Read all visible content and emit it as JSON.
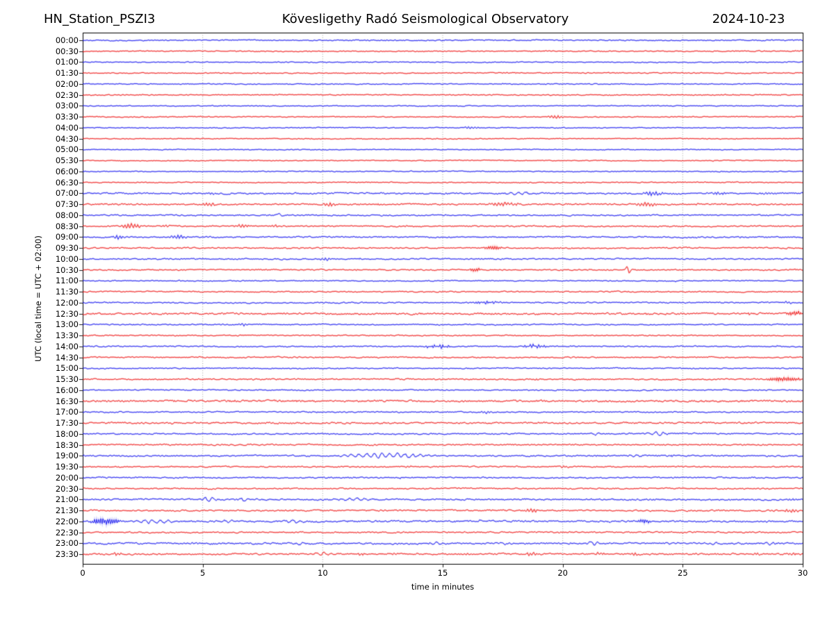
{
  "header": {
    "station": "HN_Station_PSZI3",
    "observatory": "Kövesligethy Radó Seismological Observatory",
    "date": "2024-10-23"
  },
  "chart_data": {
    "type": "line",
    "subtype": "helicorder-day-plot-seismogram",
    "title": "Kövesligethy Radó Seismological Observatory",
    "station": "HN_Station_PSZI3",
    "date": "2024-10-23",
    "xlabel": "time in minutes",
    "ylabel": "UTC (local time = UTC + 02:00)",
    "xlim": [
      0,
      30
    ],
    "x_ticks": [
      "0",
      "5",
      "10",
      "15",
      "20",
      "25",
      "30"
    ],
    "minutes_per_row": 30,
    "grid_vertical_dotted_at_minutes": [
      5,
      10,
      15,
      20,
      25
    ],
    "grid_color": "#8a8a8a",
    "trace_color_hour": "#0000ee",
    "trace_color_halfhour": "#ee0000",
    "row_labels": [
      "00:00",
      "00:30",
      "01:00",
      "01:30",
      "02:00",
      "02:30",
      "03:00",
      "03:30",
      "04:00",
      "04:30",
      "05:00",
      "05:30",
      "06:00",
      "06:30",
      "07:00",
      "07:30",
      "08:00",
      "08:30",
      "09:00",
      "09:30",
      "10:00",
      "10:30",
      "11:00",
      "11:30",
      "12:00",
      "12:30",
      "13:00",
      "13:30",
      "14:00",
      "14:30",
      "15:00",
      "15:30",
      "16:00",
      "16:30",
      "17:00",
      "17:30",
      "18:00",
      "18:30",
      "19:00",
      "19:30",
      "20:00",
      "20:30",
      "21:00",
      "21:30",
      "22:00",
      "22:30",
      "23:00",
      "23:30"
    ],
    "row_base_noise": [
      0.7,
      0.65,
      0.6,
      0.6,
      0.6,
      0.65,
      0.6,
      0.6,
      0.55,
      0.55,
      0.55,
      0.55,
      0.6,
      0.6,
      0.95,
      0.95,
      0.8,
      0.85,
      0.85,
      0.8,
      0.8,
      0.8,
      0.7,
      0.75,
      0.8,
      1.1,
      0.75,
      0.7,
      0.75,
      0.75,
      0.7,
      0.85,
      0.7,
      1.2,
      0.75,
      1.05,
      0.8,
      0.85,
      0.9,
      0.85,
      0.85,
      0.8,
      1.0,
      0.95,
      1.05,
      0.85,
      1.0,
      0.95
    ],
    "events": [
      {
        "row": "02:30",
        "start": 8.0,
        "end": 8.3,
        "amp": 1.0,
        "kind": "burst"
      },
      {
        "row": "03:30",
        "start": 19.3,
        "end": 20.1,
        "amp": 2.4,
        "kind": "burst"
      },
      {
        "row": "04:00",
        "start": 15.8,
        "end": 16.6,
        "amp": 1.6,
        "kind": "burst"
      },
      {
        "row": "07:00",
        "start": 5.1,
        "end": 5.6,
        "amp": 1.4,
        "kind": "burst"
      },
      {
        "row": "07:00",
        "start": 17.2,
        "end": 19.2,
        "amp": 1.3,
        "kind": "wave"
      },
      {
        "row": "07:00",
        "start": 23.2,
        "end": 24.3,
        "amp": 2.8,
        "kind": "burst"
      },
      {
        "row": "07:00",
        "start": 26.1,
        "end": 26.9,
        "amp": 1.7,
        "kind": "burst"
      },
      {
        "row": "07:00",
        "start": 28.2,
        "end": 28.9,
        "amp": 1.5,
        "kind": "burst"
      },
      {
        "row": "07:30",
        "start": 4.9,
        "end": 5.6,
        "amp": 2.2,
        "kind": "burst"
      },
      {
        "row": "07:30",
        "start": 9.9,
        "end": 10.7,
        "amp": 2.2,
        "kind": "burst"
      },
      {
        "row": "07:30",
        "start": 16.8,
        "end": 18.3,
        "amp": 2.6,
        "kind": "burst"
      },
      {
        "row": "07:30",
        "start": 22.9,
        "end": 24.1,
        "amp": 3.0,
        "kind": "burst"
      },
      {
        "row": "07:30",
        "start": 25.3,
        "end": 25.9,
        "amp": 1.5,
        "kind": "burst"
      },
      {
        "row": "08:00",
        "start": 8.0,
        "end": 8.5,
        "amp": 3.8,
        "kind": "spike"
      },
      {
        "row": "08:30",
        "start": 1.5,
        "end": 2.5,
        "amp": 3.6,
        "kind": "burst"
      },
      {
        "row": "08:30",
        "start": 3.3,
        "end": 3.7,
        "amp": 1.7,
        "kind": "burst"
      },
      {
        "row": "08:30",
        "start": 6.2,
        "end": 7.1,
        "amp": 2.0,
        "kind": "burst"
      },
      {
        "row": "08:30",
        "start": 7.8,
        "end": 8.2,
        "amp": 1.7,
        "kind": "burst"
      },
      {
        "row": "09:00",
        "start": 1.2,
        "end": 1.8,
        "amp": 3.0,
        "kind": "burst"
      },
      {
        "row": "09:00",
        "start": 3.5,
        "end": 4.4,
        "amp": 2.6,
        "kind": "burst"
      },
      {
        "row": "09:30",
        "start": 16.7,
        "end": 17.5,
        "amp": 3.0,
        "kind": "dense"
      },
      {
        "row": "10:00",
        "start": 9.8,
        "end": 10.4,
        "amp": 2.0,
        "kind": "burst"
      },
      {
        "row": "10:30",
        "start": 16.1,
        "end": 16.6,
        "amp": 2.8,
        "kind": "dense"
      },
      {
        "row": "10:30",
        "start": 22.55,
        "end": 22.9,
        "amp": 8.0,
        "kind": "spike"
      },
      {
        "row": "12:00",
        "start": 16.1,
        "end": 17.7,
        "amp": 2.0,
        "kind": "dots"
      },
      {
        "row": "12:00",
        "start": 29.1,
        "end": 29.7,
        "amp": 1.7,
        "kind": "burst"
      },
      {
        "row": "12:30",
        "start": 29.3,
        "end": 30.0,
        "amp": 2.6,
        "kind": "dense"
      },
      {
        "row": "13:00",
        "start": 6.4,
        "end": 7.0,
        "amp": 1.7,
        "kind": "burst"
      },
      {
        "row": "14:00",
        "start": 14.1,
        "end": 15.6,
        "amp": 2.6,
        "kind": "dots"
      },
      {
        "row": "14:00",
        "start": 18.2,
        "end": 19.5,
        "amp": 2.6,
        "kind": "dots"
      },
      {
        "row": "15:30",
        "start": 28.4,
        "end": 30.0,
        "amp": 3.0,
        "kind": "dense"
      },
      {
        "row": "17:00",
        "start": 16.5,
        "end": 17.2,
        "amp": 1.7,
        "kind": "burst"
      },
      {
        "row": "18:00",
        "start": 21.1,
        "end": 21.6,
        "amp": 1.6,
        "kind": "wave"
      },
      {
        "row": "18:00",
        "start": 23.3,
        "end": 24.5,
        "amp": 2.4,
        "kind": "wave"
      },
      {
        "row": "19:00",
        "start": 10.5,
        "end": 14.9,
        "amp": 3.0,
        "kind": "wave"
      },
      {
        "row": "19:00",
        "start": 22.7,
        "end": 23.4,
        "amp": 1.7,
        "kind": "wave"
      },
      {
        "row": "19:30",
        "start": 13.3,
        "end": 13.8,
        "amp": 1.3,
        "kind": "burst"
      },
      {
        "row": "19:30",
        "start": 19.8,
        "end": 20.3,
        "amp": 1.3,
        "kind": "burst"
      },
      {
        "row": "21:00",
        "start": 4.9,
        "end": 5.7,
        "amp": 3.2,
        "kind": "wave"
      },
      {
        "row": "21:00",
        "start": 6.4,
        "end": 7.0,
        "amp": 2.2,
        "kind": "wave"
      },
      {
        "row": "21:00",
        "start": 10.0,
        "end": 12.5,
        "amp": 1.2,
        "kind": "wave"
      },
      {
        "row": "21:00",
        "start": 29.3,
        "end": 29.9,
        "amp": 1.7,
        "kind": "burst"
      },
      {
        "row": "21:30",
        "start": 18.4,
        "end": 19.0,
        "amp": 3.4,
        "kind": "burst"
      },
      {
        "row": "21:30",
        "start": 29.2,
        "end": 29.9,
        "amp": 2.6,
        "kind": "burst"
      },
      {
        "row": "22:00",
        "start": 0.25,
        "end": 1.6,
        "amp": 4.2,
        "kind": "dense"
      },
      {
        "row": "22:00",
        "start": 1.6,
        "end": 4.2,
        "amp": 2.0,
        "kind": "wave"
      },
      {
        "row": "22:00",
        "start": 5.5,
        "end": 6.6,
        "amp": 1.4,
        "kind": "wave"
      },
      {
        "row": "22:00",
        "start": 8.2,
        "end": 9.3,
        "amp": 1.7,
        "kind": "wave"
      },
      {
        "row": "22:00",
        "start": 23.1,
        "end": 23.7,
        "amp": 2.8,
        "kind": "dense"
      },
      {
        "row": "23:00",
        "start": 8.8,
        "end": 9.3,
        "amp": 1.4,
        "kind": "wave"
      },
      {
        "row": "23:00",
        "start": 14.4,
        "end": 15.1,
        "amp": 1.9,
        "kind": "wave"
      },
      {
        "row": "23:00",
        "start": 17.3,
        "end": 17.8,
        "amp": 1.4,
        "kind": "wave"
      },
      {
        "row": "23:00",
        "start": 20.9,
        "end": 21.6,
        "amp": 2.1,
        "kind": "wave"
      },
      {
        "row": "23:00",
        "start": 24.3,
        "end": 24.8,
        "amp": 1.7,
        "kind": "wave"
      },
      {
        "row": "23:00",
        "start": 26.1,
        "end": 26.6,
        "amp": 1.7,
        "kind": "wave"
      },
      {
        "row": "23:00",
        "start": 28.2,
        "end": 28.9,
        "amp": 2.1,
        "kind": "wave"
      },
      {
        "row": "23:30",
        "start": 1.2,
        "end": 1.7,
        "amp": 1.7,
        "kind": "burst"
      },
      {
        "row": "23:30",
        "start": 9.3,
        "end": 10.7,
        "amp": 2.0,
        "kind": "wave"
      },
      {
        "row": "23:30",
        "start": 11.3,
        "end": 11.8,
        "amp": 1.7,
        "kind": "burst"
      },
      {
        "row": "23:30",
        "start": 12.8,
        "end": 13.2,
        "amp": 1.3,
        "kind": "burst"
      },
      {
        "row": "23:30",
        "start": 15.8,
        "end": 16.3,
        "amp": 1.3,
        "kind": "burst"
      },
      {
        "row": "23:30",
        "start": 18.4,
        "end": 19.1,
        "amp": 2.6,
        "kind": "burst"
      },
      {
        "row": "23:30",
        "start": 21.3,
        "end": 21.8,
        "amp": 1.7,
        "kind": "burst"
      },
      {
        "row": "23:30",
        "start": 22.8,
        "end": 23.3,
        "amp": 1.7,
        "kind": "burst"
      },
      {
        "row": "23:30",
        "start": 25.3,
        "end": 25.7,
        "amp": 1.3,
        "kind": "burst"
      },
      {
        "row": "23:30",
        "start": 27.8,
        "end": 28.3,
        "amp": 1.7,
        "kind": "burst"
      },
      {
        "row": "23:30",
        "start": 29.3,
        "end": 29.8,
        "amp": 1.7,
        "kind": "burst"
      }
    ]
  }
}
